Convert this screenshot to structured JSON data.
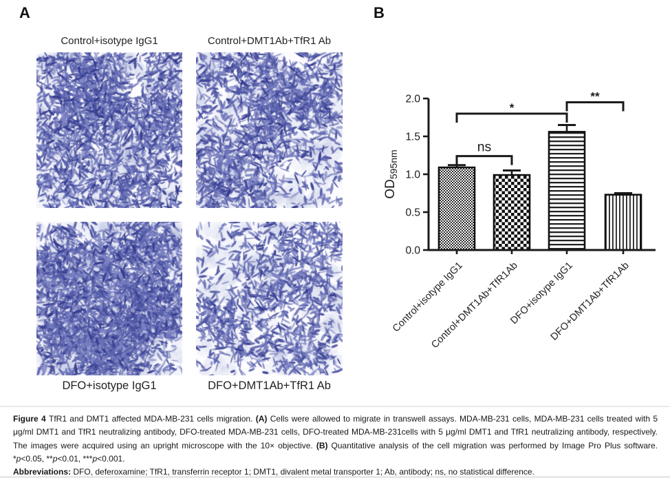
{
  "figure_labels": {
    "a": "A",
    "b": "B"
  },
  "panel_a": {
    "micrographs": [
      {
        "label": "Control+isotype IgG1",
        "label_position": "top"
      },
      {
        "label": "Control+DMT1Ab+TfR1 Ab",
        "label_position": "top"
      },
      {
        "label": "DFO+isotype IgG1",
        "label_position": "bottom"
      },
      {
        "label": "DFO+DMT1Ab+TfR1 Ab",
        "label_position": "bottom"
      }
    ]
  },
  "chart_data": {
    "type": "bar",
    "title": "",
    "xlabel": "",
    "ylabel": "OD595nm",
    "ylabel_base": "OD",
    "ylabel_subscript": "595nm",
    "categories": [
      "Control+isotype IgG1",
      "Control+DMT1Ab+TfR1Ab",
      "DFO+isotype IgG1",
      "DFO+DMT1Ab+TfR1Ab"
    ],
    "values": [
      1.09,
      0.99,
      1.56,
      0.73
    ],
    "errors": [
      0.03,
      0.06,
      0.09,
      0.02
    ],
    "ylim": [
      0.0,
      2.0
    ],
    "yticks": [
      "0.0",
      "0.5",
      "1.0",
      "1.5",
      "2.0"
    ],
    "grid": false,
    "legend": false,
    "bar_patterns": [
      "fine-checker",
      "coarse-checker",
      "horizontal-lines",
      "vertical-lines"
    ],
    "comparisons": [
      {
        "from": 0,
        "to": 1,
        "label": "ns",
        "height": 1.24
      },
      {
        "from": 0,
        "to": 2,
        "label": "*",
        "height": 1.8
      },
      {
        "from": 2,
        "to": 3,
        "label": "**",
        "height": 1.95
      }
    ]
  },
  "caption": {
    "paragraphs": [
      {
        "segments": [
          {
            "text": "Figure 4 ",
            "bold": true
          },
          {
            "text": "TfR1 and DMT1 affected MDA-MB-231 cells migration. "
          },
          {
            "text": "(A)",
            "bold": true
          },
          {
            "text": " Cells were allowed to migrate in transwell assays. MDA-MB-231 cells, MDA-MB-231 cells treated with 5 μg/ml DMT1 and TfR1 neutralizing antibody, DFO-treated MDA-MB-231 cells, DFO-treated MDA-MB-231cells with 5 μg/ml DMT1 and TfR1 neutralizing antibody, respectively. The images were acquired using an upright microscope with the 10× objective. "
          },
          {
            "text": "(B)",
            "bold": true
          },
          {
            "text": " Quantitative analysis of the cell migration was performed by Image Pro Plus software. *"
          },
          {
            "text": "p",
            "italic": true
          },
          {
            "text": "<0.05, **"
          },
          {
            "text": "p",
            "italic": true
          },
          {
            "text": "<0.01, ***"
          },
          {
            "text": "p",
            "italic": true
          },
          {
            "text": "<0.001."
          }
        ]
      },
      {
        "segments": [
          {
            "text": "Abbreviations: ",
            "bold": true
          },
          {
            "text": "DFO, deferoxamine; TfR1, transferrin receptor 1; DMT1, divalent metal transporter 1; Ab, antibody; ns, no statistical difference."
          }
        ]
      }
    ]
  },
  "colors": {
    "ink": "#1a1a1a",
    "stain_palette": [
      "#353c8f",
      "#4a51a0",
      "#5a61ad",
      "#6d74b9",
      "#7e85c4"
    ]
  }
}
